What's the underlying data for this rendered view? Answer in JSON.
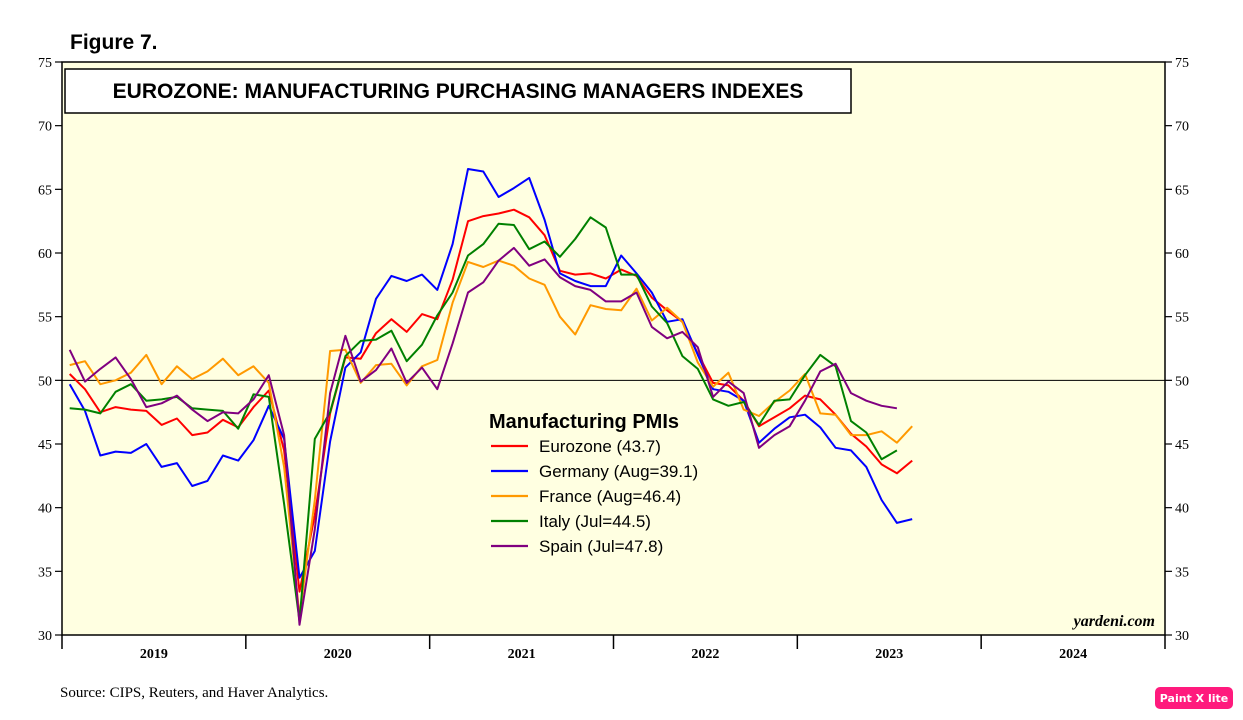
{
  "figure_label": "Figure 7.",
  "source_note": "Source: CIPS, Reuters, and Haver Analytics.",
  "credit": "yardeni.com",
  "badge_label": "Paint X lite",
  "chart_data": {
    "type": "line",
    "title": "EUROZONE: MANUFACTURING PURCHASING MANAGERS INDEXES",
    "legend_title": "Manufacturing PMIs",
    "legend_position": "center",
    "ylim": [
      30,
      75
    ],
    "yticks": [
      30,
      35,
      40,
      45,
      50,
      55,
      60,
      65,
      70,
      75
    ],
    "x_start": "2019-01",
    "x_end": "2024-12",
    "x_ticklabels": [
      "2019",
      "2020",
      "2021",
      "2022",
      "2023",
      "2024"
    ],
    "reference_line": 50,
    "background": "#ffffe1",
    "series": [
      {
        "name": "Eurozone (43.7)",
        "color": "#ff0000",
        "start": "2019-01",
        "values": [
          50.5,
          49.3,
          47.5,
          47.9,
          47.7,
          47.6,
          46.5,
          47.0,
          45.7,
          45.9,
          46.9,
          46.3,
          47.9,
          49.2,
          44.5,
          33.4,
          39.4,
          47.4,
          51.8,
          51.7,
          53.7,
          54.8,
          53.8,
          55.2,
          54.8,
          57.9,
          62.5,
          62.9,
          63.1,
          63.4,
          62.8,
          61.4,
          58.6,
          58.3,
          58.4,
          58.0,
          58.7,
          58.2,
          56.5,
          55.5,
          54.6,
          52.1,
          49.8,
          49.6,
          48.4,
          46.4,
          47.1,
          47.8,
          48.8,
          48.5,
          47.3,
          45.8,
          44.8,
          43.4,
          42.7,
          43.7
        ]
      },
      {
        "name": "Germany (Aug=39.1)",
        "color": "#0000ff",
        "start": "2019-01",
        "values": [
          49.7,
          47.6,
          44.1,
          44.4,
          44.3,
          45.0,
          43.2,
          43.5,
          41.7,
          42.1,
          44.1,
          43.7,
          45.3,
          48.0,
          45.4,
          34.5,
          36.6,
          45.2,
          51.0,
          52.2,
          56.4,
          58.2,
          57.8,
          58.3,
          57.1,
          60.7,
          66.6,
          66.4,
          64.4,
          65.1,
          65.9,
          62.6,
          58.4,
          57.8,
          57.4,
          57.4,
          59.8,
          58.4,
          56.9,
          54.6,
          54.8,
          52.0,
          49.3,
          49.1,
          48.4,
          45.1,
          46.2,
          47.1,
          47.3,
          46.3,
          44.7,
          44.5,
          43.2,
          40.6,
          38.8,
          39.1
        ]
      },
      {
        "name": "France (Aug=46.4)",
        "color": "#ff9900",
        "start": "2019-01",
        "values": [
          51.2,
          51.5,
          49.7,
          50.0,
          50.6,
          52.0,
          49.7,
          51.1,
          50.1,
          50.7,
          51.7,
          50.4,
          51.1,
          49.8,
          43.2,
          31.5,
          40.6,
          52.3,
          52.4,
          49.8,
          51.2,
          51.3,
          49.6,
          51.1,
          51.6,
          56.1,
          59.3,
          58.9,
          59.4,
          59.0,
          58.0,
          57.5,
          55.0,
          53.6,
          55.9,
          55.6,
          55.5,
          57.2,
          54.7,
          55.7,
          54.6,
          51.4,
          49.5,
          50.6,
          47.7,
          47.2,
          48.3,
          49.2,
          50.5,
          47.4,
          47.3,
          45.7,
          45.7,
          46.0,
          45.1,
          46.4
        ]
      },
      {
        "name": "Italy (Jul=44.5)",
        "color": "#008000",
        "start": "2019-01",
        "values": [
          47.8,
          47.7,
          47.4,
          49.1,
          49.7,
          48.4,
          48.5,
          48.7,
          47.8,
          47.7,
          47.6,
          46.2,
          48.9,
          48.7,
          40.3,
          31.1,
          45.4,
          47.5,
          51.9,
          53.1,
          53.2,
          53.9,
          51.5,
          52.8,
          55.1,
          56.9,
          59.8,
          60.7,
          62.3,
          62.2,
          60.3,
          60.9,
          59.7,
          61.1,
          62.8,
          62.0,
          58.3,
          58.3,
          55.8,
          54.5,
          51.9,
          50.9,
          48.5,
          48.0,
          48.3,
          46.5,
          48.4,
          48.5,
          50.4,
          52.0,
          51.1,
          46.8,
          45.9,
          43.8,
          44.5
        ]
      },
      {
        "name": "Spain (Jul=47.8)",
        "color": "#800080",
        "start": "2019-01",
        "values": [
          52.4,
          49.9,
          50.9,
          51.8,
          50.1,
          47.9,
          48.2,
          48.8,
          47.7,
          46.8,
          47.5,
          47.4,
          48.5,
          50.4,
          45.7,
          30.8,
          38.3,
          49.0,
          53.5,
          49.9,
          50.8,
          52.5,
          49.8,
          51.0,
          49.3,
          52.9,
          56.9,
          57.7,
          59.4,
          60.4,
          59.0,
          59.5,
          58.1,
          57.4,
          57.1,
          56.2,
          56.2,
          56.9,
          54.2,
          53.3,
          53.8,
          52.6,
          48.7,
          49.9,
          49.0,
          44.7,
          45.7,
          46.4,
          48.4,
          50.7,
          51.3,
          49.0,
          48.4,
          48.0,
          47.8
        ]
      }
    ]
  }
}
